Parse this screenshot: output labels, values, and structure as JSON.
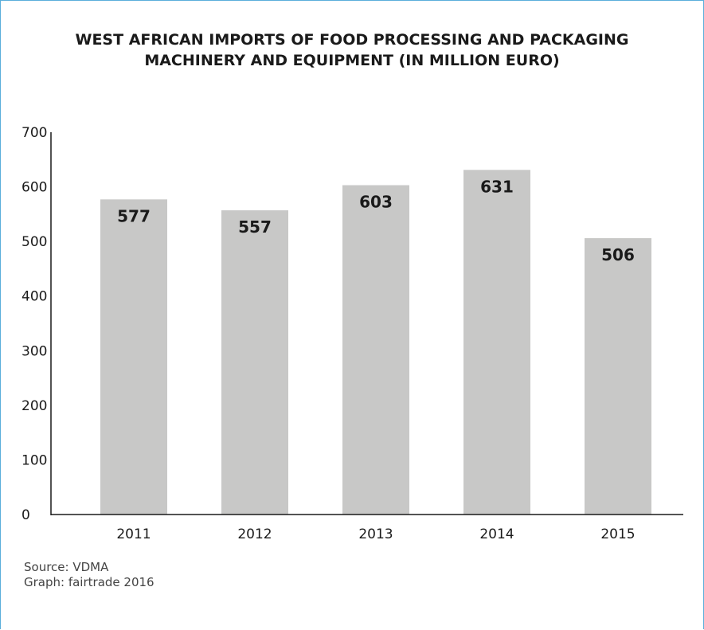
{
  "title_lines": [
    "WEST AFRICAN IMPORTS OF FOOD PROCESSING AND PACKAGING",
    "MACHINERY AND EQUIPMENT (IN MILLION EURO)"
  ],
  "source_line": "Source: VDMA",
  "graph_line": "Graph: fairtrade 2016",
  "colors": {
    "bar": "#c8c8c7",
    "axis": "#1a1a1a",
    "frame": "#5aaedb"
  },
  "chart_data": {
    "type": "bar",
    "title": "WEST AFRICAN IMPORTS OF FOOD PROCESSING AND PACKAGING MACHINERY AND EQUIPMENT (IN MILLION EURO)",
    "categories": [
      "2011",
      "2012",
      "2013",
      "2014",
      "2015"
    ],
    "values": [
      577,
      557,
      603,
      631,
      506
    ],
    "value_labels": [
      "577",
      "557",
      "603",
      "631",
      "506"
    ],
    "xlabel": "",
    "ylabel": "",
    "ylim": [
      0,
      700
    ],
    "yticks": [
      0,
      100,
      200,
      300,
      400,
      500,
      600,
      700
    ],
    "grid": false,
    "legend": "none"
  }
}
